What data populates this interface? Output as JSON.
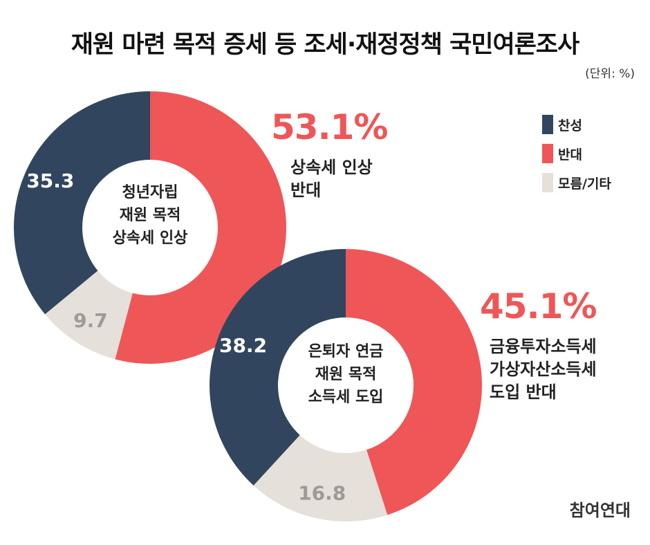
{
  "title": "재원 마련 목적 증세 등 조세·재정정책 국민여론조사",
  "unit": "(단위: %)",
  "legend": [
    {
      "label": "찬성",
      "color": "#31465e"
    },
    {
      "label": "반대",
      "color": "#ef5657"
    },
    {
      "label": "모름/기타",
      "color": "#e6e0da"
    }
  ],
  "brand": "참여연대",
  "chart_data": [
    {
      "type": "pie",
      "donut": true,
      "center_label": [
        "청년자립",
        "재원 목적",
        "상속세 인상"
      ],
      "categories": [
        "반대",
        "모름/기타",
        "찬성"
      ],
      "values": [
        53.1,
        9.7,
        35.3
      ],
      "value_labels": [
        "",
        "9.7",
        "35.3"
      ],
      "highlight": {
        "value": "53.1%",
        "text": [
          "상속세 인상",
          "반대"
        ]
      }
    },
    {
      "type": "pie",
      "donut": true,
      "center_label": [
        "은퇴자 연금",
        "재원 목적",
        "소득세 도입"
      ],
      "categories": [
        "반대",
        "모름/기타",
        "찬성"
      ],
      "values": [
        45.1,
        16.8,
        38.2
      ],
      "value_labels": [
        "",
        "16.8",
        "38.2"
      ],
      "highlight": {
        "value": "45.1%",
        "text": [
          "금융투자소득세",
          "가상자산소득세",
          "도입 반대"
        ]
      }
    }
  ]
}
